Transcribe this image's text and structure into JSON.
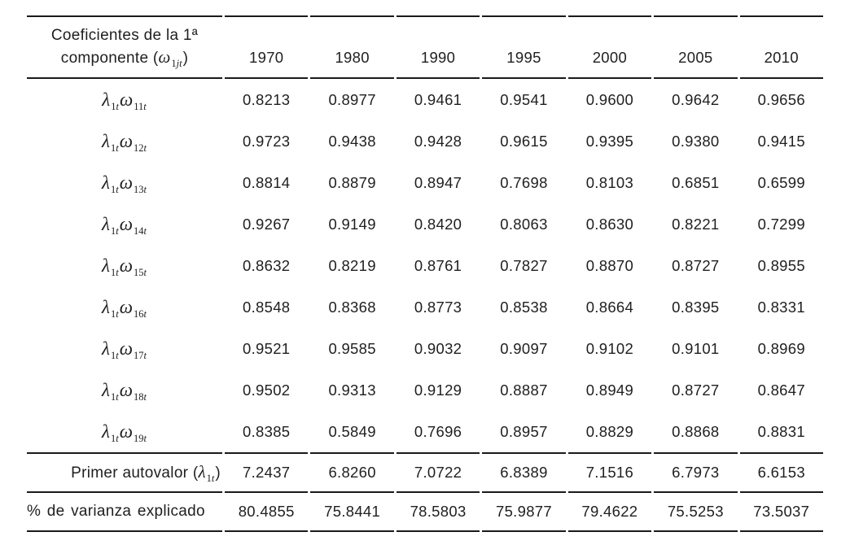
{
  "page": {
    "background": "#ffffff",
    "text_color": "#1f1f1f",
    "rule_color": "#1a1a1a"
  },
  "table": {
    "title": {
      "line1": "Coeficientes de la 1ª",
      "line2_prefix": "componente (",
      "line2_suffix": ")"
    },
    "math": {
      "lambda": "λ",
      "omega": "ω",
      "lambda_sub_num": "1",
      "sub_var_t": "t",
      "omega_header_sub_num": "1",
      "omega_header_sub_italic": "jt"
    },
    "years": [
      "1970",
      "1980",
      "1990",
      "1995",
      "2000",
      "2005",
      "2010"
    ],
    "coef_rows": [
      {
        "omega_sub_num": "11",
        "values": [
          "0.8213",
          "0.8977",
          "0.9461",
          "0.9541",
          "0.9600",
          "0.9642",
          "0.9656"
        ]
      },
      {
        "omega_sub_num": "12",
        "values": [
          "0.9723",
          "0.9438",
          "0.9428",
          "0.9615",
          "0.9395",
          "0.9380",
          "0.9415"
        ]
      },
      {
        "omega_sub_num": "13",
        "values": [
          "0.8814",
          "0.8879",
          "0.8947",
          "0.7698",
          "0.8103",
          "0.6851",
          "0.6599"
        ]
      },
      {
        "omega_sub_num": "14",
        "values": [
          "0.9267",
          "0.9149",
          "0.8420",
          "0.8063",
          "0.8630",
          "0.8221",
          "0.7299"
        ]
      },
      {
        "omega_sub_num": "15",
        "values": [
          "0.8632",
          "0.8219",
          "0.8761",
          "0.7827",
          "0.8870",
          "0.8727",
          "0.8955"
        ]
      },
      {
        "omega_sub_num": "16",
        "values": [
          "0.8548",
          "0.8368",
          "0.8773",
          "0.8538",
          "0.8664",
          "0.8395",
          "0.8331"
        ]
      },
      {
        "omega_sub_num": "17",
        "values": [
          "0.9521",
          "0.9585",
          "0.9032",
          "0.9097",
          "0.9102",
          "0.9101",
          "0.8969"
        ]
      },
      {
        "omega_sub_num": "18",
        "values": [
          "0.9502",
          "0.9313",
          "0.9129",
          "0.8887",
          "0.8949",
          "0.8727",
          "0.8647"
        ]
      },
      {
        "omega_sub_num": "19",
        "values": [
          "0.8385",
          "0.5849",
          "0.7696",
          "0.8957",
          "0.8829",
          "0.8868",
          "0.8831"
        ]
      }
    ],
    "autovalor": {
      "label_prefix": "Primer autovalor (",
      "label_suffix": ")",
      "values": [
        "7.2437",
        "6.8260",
        "7.0722",
        "6.8389",
        "7.1516",
        "6.7973",
        "6.6153"
      ]
    },
    "varianza": {
      "label": "% de varianza explicado",
      "values": [
        "80.4855",
        "75.8441",
        "78.5803",
        "75.9877",
        "79.4622",
        "75.5253",
        "73.5037"
      ]
    }
  }
}
